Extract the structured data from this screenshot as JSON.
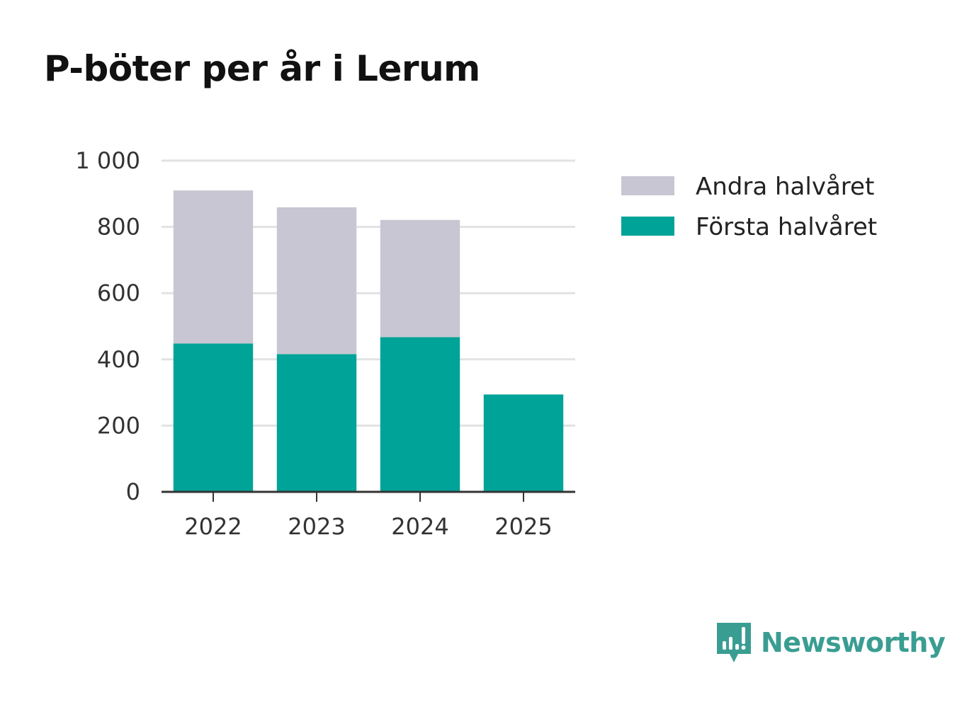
{
  "title": "P-böter per år i Lerum",
  "brand": {
    "name": "Newsworthy",
    "color": "#3a9d92"
  },
  "colors": {
    "first_half": "#00a398",
    "second_half": "#c8c6d2",
    "grid": "#e2e2e2",
    "axis": "#333333"
  },
  "chart_data": {
    "type": "bar",
    "stacked": true,
    "title": "P-böter per år i Lerum",
    "xlabel": "",
    "ylabel": "",
    "categories": [
      "2022",
      "2023",
      "2024",
      "2025"
    ],
    "series": [
      {
        "name": "Första halvåret",
        "values": [
          448,
          416,
          467,
          294
        ]
      },
      {
        "name": "Andra halvåret",
        "values": [
          462,
          443,
          354,
          0
        ]
      }
    ],
    "legend_order": [
      "Andra halvåret",
      "Första halvåret"
    ],
    "legend_position": "top-right",
    "ylim": [
      0,
      1000
    ],
    "yticks": [
      0,
      200,
      400,
      600,
      800,
      1000
    ],
    "ytick_labels": [
      "0",
      "200",
      "400",
      "600",
      "800",
      "1 000"
    ],
    "grid": true
  }
}
